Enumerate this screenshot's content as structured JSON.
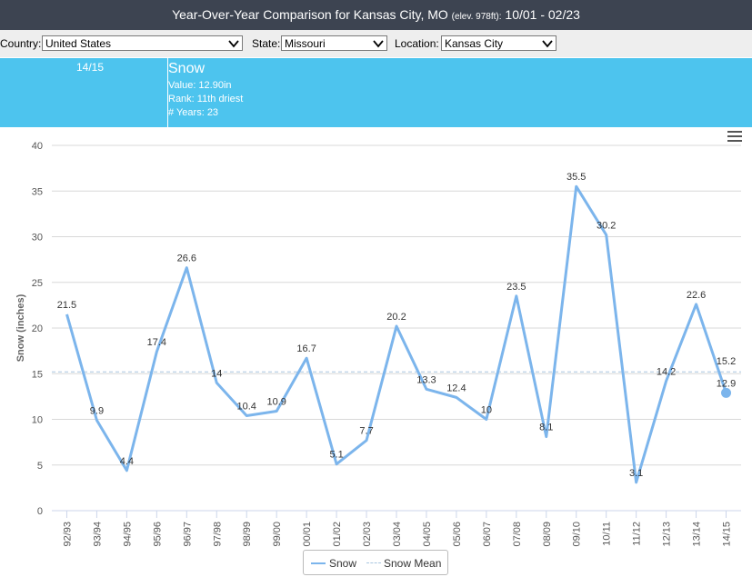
{
  "header": {
    "title_main": "Year-Over-Year Comparison for Kansas City, MO",
    "title_elev": "(elev. 978ft):",
    "title_range": "10/01 - 02/23"
  },
  "controls": {
    "country_label": "Country:",
    "country_value": "United States",
    "state_label": "State:",
    "state_value": "Missouri",
    "location_label": "Location:",
    "location_value": "Kansas City"
  },
  "info": {
    "season": "14/15",
    "title": "Snow",
    "value": "Value: 12.90in",
    "rank": "Rank: 11th driest",
    "years": "# Years: 23"
  },
  "colors": {
    "header_bg": "#3d4451",
    "info_bg": "#4dc4ee",
    "series": "#7cb5ec",
    "mean": "#a9c6df"
  },
  "chart_data": {
    "type": "line",
    "ylabel": "Snow (inches)",
    "ylim": [
      0,
      40
    ],
    "yticks": [
      0,
      5,
      10,
      15,
      20,
      25,
      30,
      35,
      40
    ],
    "categories": [
      "92/93",
      "93/94",
      "94/95",
      "95/96",
      "96/97",
      "97/98",
      "98/99",
      "99/00",
      "00/01",
      "01/02",
      "02/03",
      "03/04",
      "04/05",
      "05/06",
      "06/07",
      "07/08",
      "08/09",
      "09/10",
      "10/11",
      "11/12",
      "12/13",
      "13/14",
      "14/15"
    ],
    "series": [
      {
        "name": "Snow",
        "values": [
          21.5,
          9.9,
          4.4,
          17.4,
          26.6,
          14,
          10.4,
          10.9,
          16.7,
          5.1,
          7.7,
          20.2,
          13.3,
          12.4,
          10,
          23.5,
          8.1,
          35.5,
          30.2,
          3.1,
          14.2,
          22.6,
          12.9
        ]
      },
      {
        "name": "Snow Mean",
        "value": 15.2
      }
    ],
    "data_labels": [
      "21.5",
      "9.9",
      "4.4",
      "17.4",
      "26.6",
      "14",
      "10.4",
      "10.9",
      "16.7",
      "5.1",
      "7.7",
      "20.2",
      "13.3",
      "12.4",
      "10",
      "23.5",
      "8.1",
      "35.5",
      "30.2",
      "3.1",
      "14.2",
      "22.6",
      "12.9"
    ],
    "mean_label": "15.2",
    "highlighted_index": 22,
    "grid": true,
    "legend_position": "bottom-center"
  }
}
